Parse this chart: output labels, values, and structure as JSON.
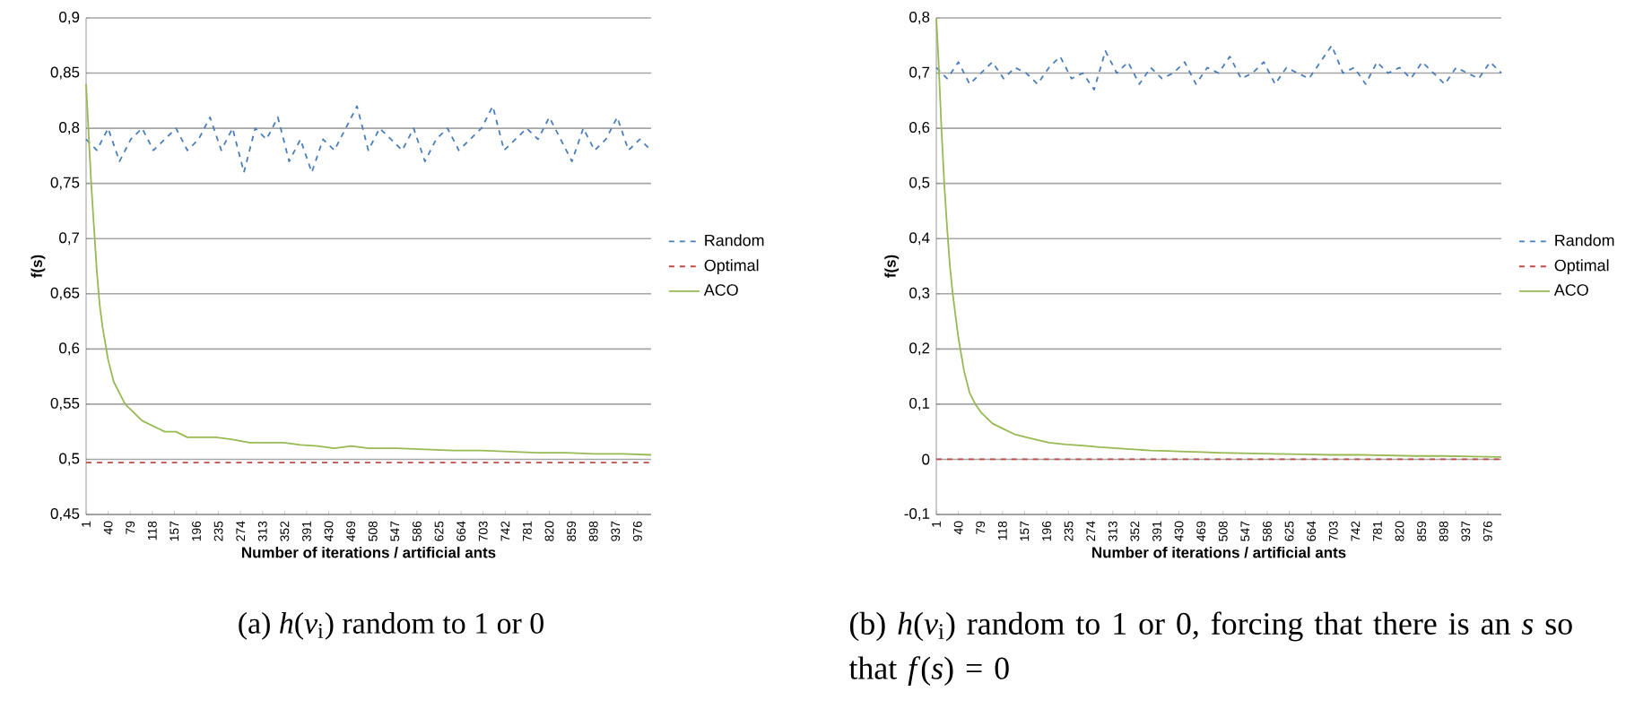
{
  "chart_data": [
    {
      "type": "line",
      "xlabel": "Number of iterations / artificial ants",
      "ylabel": "f(s)",
      "xlim": [
        1,
        1000
      ],
      "ylim": [
        0.45,
        0.9
      ],
      "xticks": [
        1,
        40,
        79,
        118,
        157,
        196,
        235,
        274,
        313,
        352,
        391,
        430,
        469,
        508,
        547,
        586,
        625,
        664,
        703,
        742,
        781,
        820,
        859,
        898,
        937,
        976
      ],
      "yticks": [
        {
          "value": 0.45,
          "label": "0,45"
        },
        {
          "value": 0.5,
          "label": "0,5"
        },
        {
          "value": 0.55,
          "label": "0,55"
        },
        {
          "value": 0.6,
          "label": "0,6"
        },
        {
          "value": 0.65,
          "label": "0,65"
        },
        {
          "value": 0.7,
          "label": "0,7"
        },
        {
          "value": 0.75,
          "label": "0,75"
        },
        {
          "value": 0.8,
          "label": "0,8"
        },
        {
          "value": 0.85,
          "label": "0,85"
        },
        {
          "value": 0.9,
          "label": "0,9"
        }
      ],
      "grid": "y",
      "legend": "right",
      "annotations": [
        "(a) *h*(*v*$_{i}$) random to 1 or 0"
      ],
      "series": [
        {
          "name": "Random",
          "color": "#4a7ebb",
          "line_style": "dashed",
          "x": [
            1,
            20,
            40,
            60,
            80,
            100,
            120,
            140,
            160,
            180,
            200,
            220,
            240,
            260,
            280,
            300,
            320,
            340,
            360,
            380,
            400,
            420,
            440,
            460,
            480,
            500,
            520,
            540,
            560,
            580,
            600,
            620,
            640,
            660,
            680,
            700,
            720,
            740,
            760,
            780,
            800,
            820,
            840,
            860,
            880,
            900,
            920,
            940,
            960,
            980,
            1000
          ],
          "values": [
            0.79,
            0.78,
            0.8,
            0.77,
            0.79,
            0.8,
            0.78,
            0.79,
            0.8,
            0.78,
            0.79,
            0.81,
            0.78,
            0.8,
            0.76,
            0.8,
            0.79,
            0.81,
            0.77,
            0.79,
            0.76,
            0.79,
            0.78,
            0.8,
            0.82,
            0.78,
            0.8,
            0.79,
            0.78,
            0.8,
            0.77,
            0.79,
            0.8,
            0.78,
            0.79,
            0.8,
            0.82,
            0.78,
            0.79,
            0.8,
            0.79,
            0.81,
            0.79,
            0.77,
            0.8,
            0.78,
            0.79,
            0.81,
            0.78,
            0.79,
            0.78
          ]
        },
        {
          "name": "Optimal",
          "color": "#be4b48",
          "line_style": "dashed",
          "x": [
            1,
            1000
          ],
          "values": [
            0.497,
            0.497
          ]
        },
        {
          "name": "ACO",
          "color": "#98b954",
          "line_style": "solid",
          "x": [
            1,
            5,
            10,
            15,
            20,
            25,
            30,
            40,
            50,
            60,
            70,
            80,
            90,
            100,
            120,
            140,
            160,
            180,
            200,
            230,
            260,
            290,
            320,
            350,
            380,
            410,
            440,
            470,
            500,
            550,
            600,
            650,
            700,
            750,
            800,
            850,
            900,
            950,
            1000
          ],
          "values": [
            0.84,
            0.8,
            0.75,
            0.71,
            0.67,
            0.64,
            0.62,
            0.59,
            0.57,
            0.56,
            0.55,
            0.545,
            0.54,
            0.535,
            0.53,
            0.525,
            0.525,
            0.52,
            0.52,
            0.52,
            0.518,
            0.515,
            0.515,
            0.515,
            0.513,
            0.512,
            0.51,
            0.512,
            0.51,
            0.51,
            0.509,
            0.508,
            0.508,
            0.507,
            0.506,
            0.506,
            0.505,
            0.505,
            0.504
          ]
        }
      ]
    },
    {
      "type": "line",
      "xlabel": "Number of iterations / artificial ants",
      "ylabel": "f(s)",
      "xlim": [
        1,
        1000
      ],
      "ylim": [
        -0.1,
        0.8
      ],
      "xticks": [
        1,
        40,
        79,
        118,
        157,
        196,
        235,
        274,
        313,
        352,
        391,
        430,
        469,
        508,
        547,
        586,
        625,
        664,
        703,
        742,
        781,
        820,
        859,
        898,
        937,
        976
      ],
      "yticks": [
        {
          "value": -0.1,
          "label": "-0,1"
        },
        0,
        {
          "value": 0.1,
          "label": "0,1"
        },
        {
          "value": 0.2,
          "label": "0,2"
        },
        {
          "value": 0.3,
          "label": "0,3"
        },
        {
          "value": 0.4,
          "label": "0,4"
        },
        {
          "value": 0.5,
          "label": "0,5"
        },
        {
          "value": 0.6,
          "label": "0,6"
        },
        {
          "value": 0.7,
          "label": "0,7"
        },
        {
          "value": 0.8,
          "label": "0,8"
        }
      ],
      "grid": "y",
      "legend": "right",
      "annotations": [
        "(b) *h*(*v*$_{i}$) random to 1 or 0, forcing that there is an *s* so that *f*(*s*) = 0"
      ],
      "series": [
        {
          "name": "Random",
          "color": "#4a7ebb",
          "line_style": "dashed",
          "x": [
            1,
            20,
            40,
            60,
            80,
            100,
            120,
            140,
            160,
            180,
            200,
            220,
            240,
            260,
            280,
            300,
            320,
            340,
            360,
            380,
            400,
            420,
            440,
            460,
            480,
            500,
            520,
            540,
            560,
            580,
            600,
            620,
            640,
            660,
            680,
            700,
            720,
            740,
            760,
            780,
            800,
            820,
            840,
            860,
            880,
            900,
            920,
            940,
            960,
            980,
            1000
          ],
          "values": [
            0.71,
            0.69,
            0.72,
            0.68,
            0.7,
            0.72,
            0.69,
            0.71,
            0.7,
            0.68,
            0.71,
            0.73,
            0.69,
            0.7,
            0.67,
            0.74,
            0.7,
            0.72,
            0.68,
            0.71,
            0.69,
            0.7,
            0.72,
            0.68,
            0.71,
            0.7,
            0.73,
            0.69,
            0.7,
            0.72,
            0.68,
            0.71,
            0.7,
            0.69,
            0.72,
            0.75,
            0.7,
            0.71,
            0.68,
            0.72,
            0.7,
            0.71,
            0.69,
            0.72,
            0.7,
            0.68,
            0.71,
            0.7,
            0.69,
            0.72,
            0.7
          ]
        },
        {
          "name": "Optimal",
          "color": "#be4b48",
          "line_style": "dashed",
          "x": [
            1,
            1000
          ],
          "values": [
            0,
            0
          ]
        },
        {
          "name": "ACO",
          "color": "#98b954",
          "line_style": "solid",
          "x": [
            1,
            5,
            10,
            15,
            20,
            25,
            30,
            40,
            50,
            60,
            70,
            80,
            90,
            100,
            120,
            140,
            160,
            180,
            200,
            230,
            260,
            290,
            320,
            350,
            380,
            410,
            440,
            470,
            500,
            550,
            600,
            650,
            700,
            750,
            800,
            850,
            900,
            950,
            1000
          ],
          "values": [
            0.8,
            0.72,
            0.6,
            0.5,
            0.42,
            0.35,
            0.3,
            0.22,
            0.16,
            0.12,
            0.1,
            0.085,
            0.075,
            0.065,
            0.055,
            0.045,
            0.04,
            0.035,
            0.03,
            0.027,
            0.025,
            0.022,
            0.02,
            0.018,
            0.016,
            0.015,
            0.014,
            0.013,
            0.012,
            0.011,
            0.01,
            0.009,
            0.008,
            0.008,
            0.007,
            0.006,
            0.006,
            0.005,
            0.004
          ]
        }
      ]
    }
  ]
}
